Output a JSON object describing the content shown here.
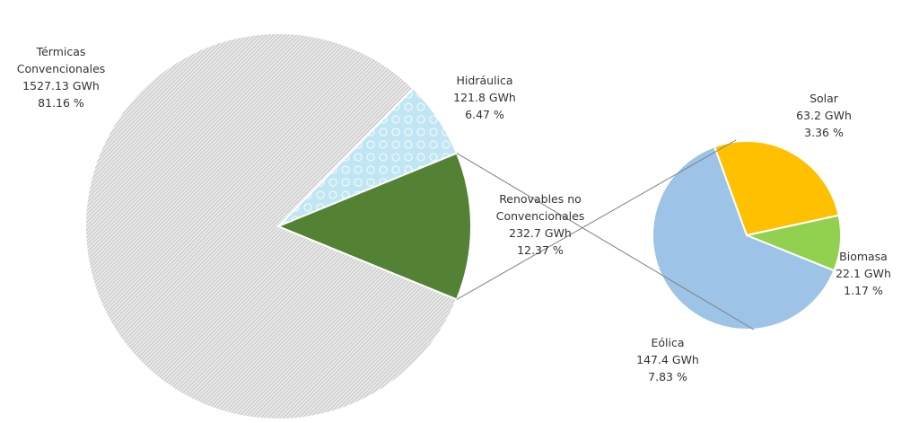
{
  "chart_data": {
    "type": "pie-of-pie",
    "pie": {
      "categories": [
        "Térmicas\nConvencionales",
        "Hidráulica",
        "Renovables no\nConvencionales"
      ],
      "values": [
        1527.13,
        121.8,
        232.7
      ],
      "value_labels": [
        "1527.13 GWh",
        "121.8 GWh",
        "232.7 GWh"
      ],
      "percents": [
        81.16,
        6.47,
        12.37
      ],
      "percent_labels": [
        "81.16 %",
        "6.47 %",
        "12.37 %"
      ],
      "colors": [
        "#d4d4d4",
        "#bfe6f2",
        "#548235"
      ]
    },
    "subpie": {
      "categories": [
        "Solar",
        "Biomasa",
        "Eólica"
      ],
      "values": [
        63.2,
        22.1,
        147.4
      ],
      "value_labels": [
        "63.2 GWh",
        "22.1 GWh",
        "147.4 GWh"
      ],
      "percents": [
        3.36,
        1.17,
        7.83
      ],
      "percent_labels": [
        "3.36 %",
        "1.17 %",
        "7.83 %"
      ],
      "colors": [
        "#ffc000",
        "#92d050",
        "#9dc3e6"
      ]
    }
  }
}
